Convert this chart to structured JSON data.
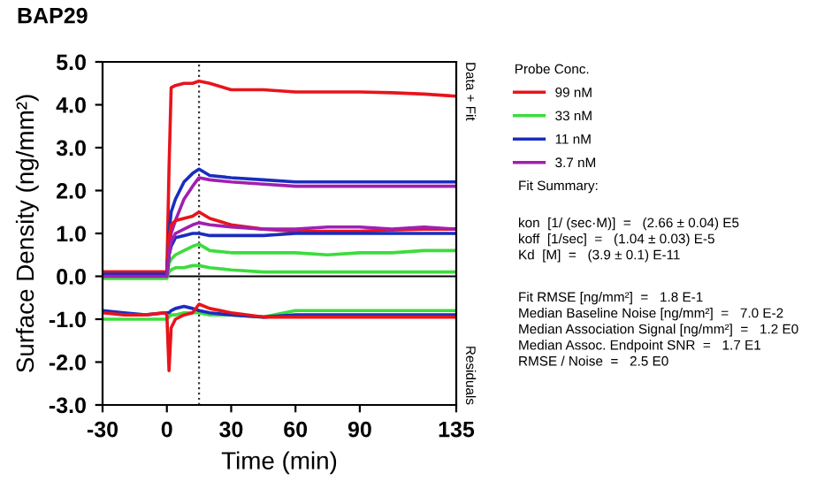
{
  "chart_data": {
    "type": "line",
    "title": "BAP29",
    "xlabel": "Time (min)",
    "ylabel": "Surface Density (ng/mm²)",
    "legend_title": "Probe Conc.",
    "x": [
      -30,
      -20,
      -10,
      -1,
      0,
      1,
      2,
      4,
      8,
      12,
      15,
      20,
      30,
      45,
      60,
      75,
      90,
      105,
      120,
      135
    ],
    "xlim": [
      -30,
      135
    ],
    "xticks": [
      -30,
      0,
      30,
      60,
      90,
      135
    ],
    "ylim": [
      -3,
      5
    ],
    "yticks": [
      {
        "value": -3,
        "label": "-3.0"
      },
      {
        "value": -2,
        "label": "-2.0"
      },
      {
        "value": -1,
        "label": "-1.0"
      },
      {
        "value": 0,
        "label": "0.0"
      },
      {
        "value": 1,
        "label": "1.0"
      },
      {
        "value": 2,
        "label": "2.0"
      },
      {
        "value": 3,
        "label": "3.0"
      },
      {
        "value": 4,
        "label": "4.0"
      },
      {
        "value": 5,
        "label": "5.0"
      }
    ],
    "grid": false,
    "legend": "right",
    "marker": "none",
    "line_style": "solid",
    "series": [
      {
        "name": "99 nM",
        "color": "#e8141b",
        "values": [
          0.1,
          0.1,
          0.1,
          0.1,
          0.1,
          2.5,
          4.4,
          4.45,
          4.5,
          4.5,
          4.55,
          4.5,
          4.35,
          4.35,
          4.3,
          4.3,
          4.3,
          4.28,
          4.25,
          4.2
        ]
      },
      {
        "name": "33 nM",
        "color": "#3cdc3c",
        "values": [
          0,
          0,
          0,
          0,
          0,
          0.3,
          0.4,
          0.5,
          0.6,
          0.7,
          0.75,
          0.6,
          0.55,
          0.55,
          0.55,
          0.5,
          0.55,
          0.55,
          0.6,
          0.6
        ]
      },
      {
        "name": "11 nM",
        "color": "#1a2dbf",
        "values": [
          0.05,
          0.05,
          0.05,
          0.05,
          0.05,
          1.0,
          1.5,
          1.8,
          2.2,
          2.4,
          2.5,
          2.35,
          2.3,
          2.25,
          2.2,
          2.2,
          2.2,
          2.2,
          2.2,
          2.2
        ]
      },
      {
        "name": "3.7 nM",
        "color": "#a020b0",
        "values": [
          0,
          0,
          0,
          0,
          0,
          0.5,
          1.0,
          1.3,
          1.8,
          2.1,
          2.3,
          2.25,
          2.2,
          2.15,
          2.1,
          2.1,
          2.1,
          2.1,
          2.1,
          2.1
        ]
      },
      {
        "color": "#e8141b",
        "values": [
          0.1,
          0.1,
          0.1,
          0.1,
          0.1,
          0.9,
          1.2,
          1.3,
          1.35,
          1.4,
          1.5,
          1.35,
          1.2,
          1.1,
          1.05,
          1.05,
          1.05,
          1.08,
          1.1,
          1.1
        ]
      },
      {
        "color": "#3cdc3c",
        "values": [
          -0.05,
          -0.05,
          -0.05,
          -0.05,
          -0.05,
          0.1,
          0.15,
          0.2,
          0.2,
          0.25,
          0.25,
          0.2,
          0.15,
          0.1,
          0.1,
          0.1,
          0.1,
          0.1,
          0.1,
          0.1
        ]
      },
      {
        "color": "#1a2dbf",
        "values": [
          0.05,
          0.05,
          0.05,
          0.05,
          0.05,
          0.5,
          0.7,
          0.9,
          0.95,
          1.0,
          1.0,
          0.95,
          0.95,
          0.95,
          1.0,
          1.0,
          1.0,
          1.0,
          1.0,
          1.0
        ]
      },
      {
        "color": "#a020b0",
        "values": [
          0,
          0,
          0,
          0,
          0,
          0.5,
          0.8,
          1.0,
          1.1,
          1.2,
          1.25,
          1.2,
          1.15,
          1.1,
          1.1,
          1.15,
          1.15,
          1.1,
          1.15,
          1.1
        ]
      },
      {
        "color": "#3cdc3c",
        "values": [
          -1.0,
          -1.0,
          -1.0,
          -1.0,
          -1.0,
          -0.95,
          -0.9,
          -0.9,
          -0.85,
          -0.85,
          -0.85,
          -0.9,
          -0.9,
          -0.95,
          -0.8,
          -0.8,
          -0.8,
          -0.8,
          -0.8,
          -0.8
        ]
      },
      {
        "color": "#1a2dbf",
        "values": [
          -0.8,
          -0.85,
          -0.9,
          -0.85,
          -0.85,
          -0.85,
          -0.8,
          -0.75,
          -0.7,
          -0.75,
          -0.8,
          -0.85,
          -0.9,
          -0.95,
          -0.9,
          -0.9,
          -0.9,
          -0.9,
          -0.9,
          -0.9
        ]
      },
      {
        "color": "#e8141b",
        "values": [
          -0.85,
          -0.9,
          -0.9,
          -0.85,
          -0.9,
          -2.2,
          -1.2,
          -1.0,
          -0.9,
          -0.85,
          -0.65,
          -0.75,
          -0.85,
          -0.95,
          -0.95,
          -0.95,
          -0.95,
          -0.95,
          -0.95,
          -0.95
        ]
      }
    ],
    "ref_lines": [
      {
        "axis": "x",
        "value": 15,
        "color": "#333333",
        "line_style": "dotted"
      },
      {
        "axis": "y",
        "value": 0,
        "color": "#000000",
        "line_style": "solid"
      }
    ],
    "annotations": [
      "Data + Fit",
      "Residuals",
      "Fit Summary:",
      "kon  [1/ (sec·M)]  =   (2.66 ± 0.04) E5\nkoff  [1/sec]  =   (1.04 ± 0.03) E-5\nKd  [M]  =   (3.9 ± 0.1) E-11",
      "Fit RMSE [ng/mm²]  =   1.8 E-1\nMedian Baseline Noise [ng/mm²]  =   7.0 E-2\nMedian Association Signal [ng/mm²]  =   1.2 E0\nMedian Assoc. Endpoint SNR  =   1.7 E1\nRMSE / Noise  =   2.5 E0"
    ]
  }
}
